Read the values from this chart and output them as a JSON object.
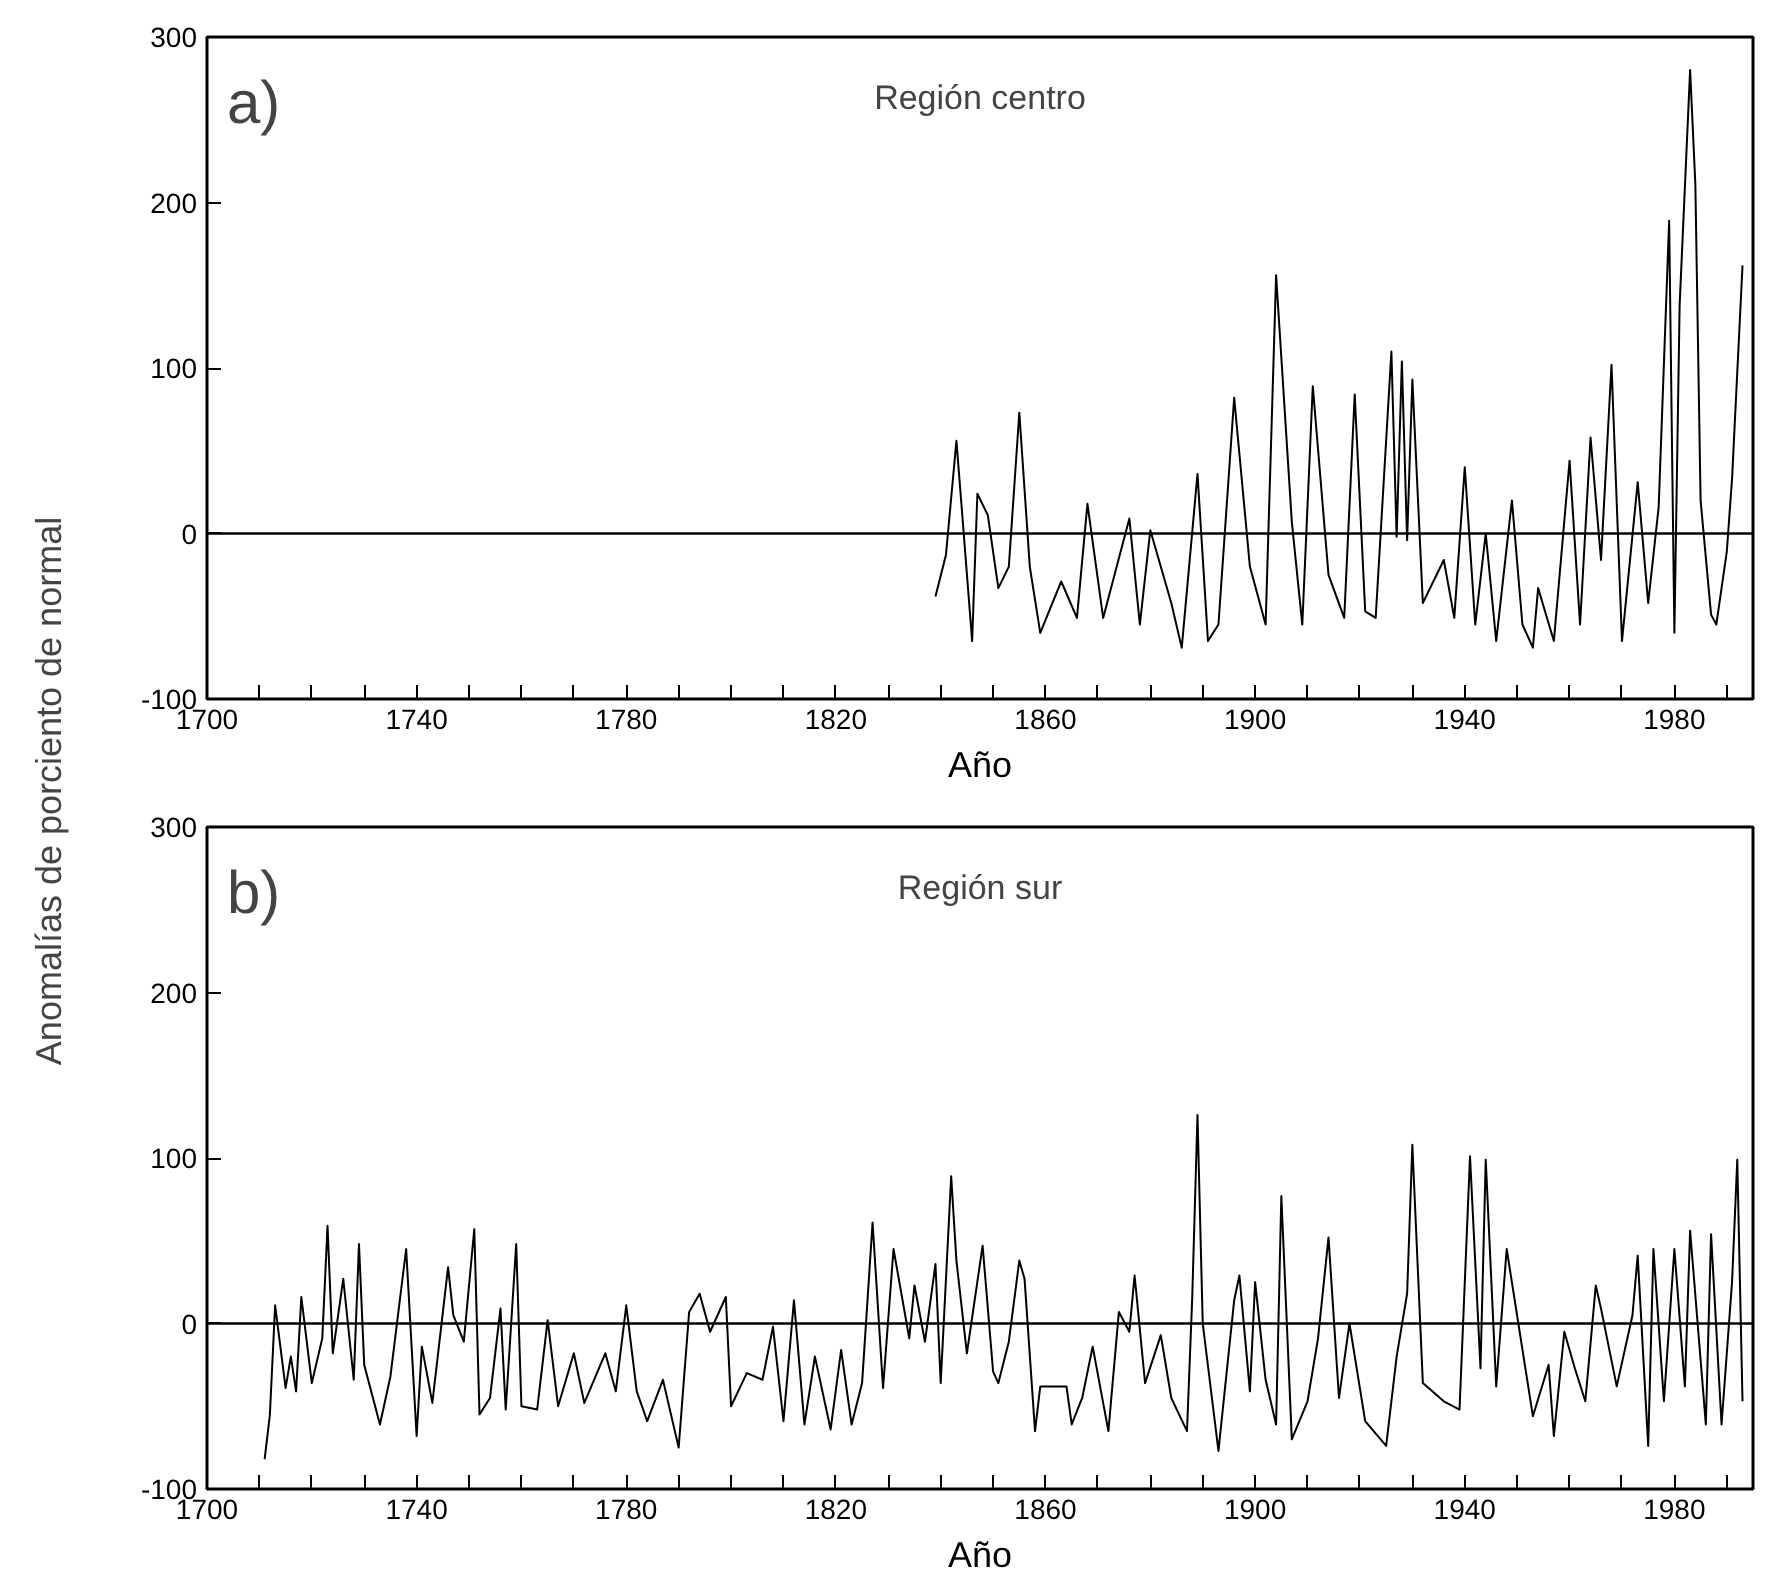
{
  "chart_data": [
    {
      "type": "line",
      "title": "Región centro",
      "xlabel": "Año",
      "ylabel": "Anomalías de porciento de normal",
      "annotations": [
        "a)"
      ],
      "series": [
        {
          "color": "#000000",
          "x": [
            1839,
            1841,
            1843,
            1844,
            1846,
            1847,
            1849,
            1851,
            1853,
            1855,
            1857,
            1859,
            1863,
            1866,
            1868,
            1871,
            1876,
            1878,
            1880,
            1884,
            1886,
            1889,
            1891,
            1893,
            1896,
            1899,
            1902,
            1904,
            1907,
            1909,
            1911,
            1914,
            1917,
            1919,
            1921,
            1923,
            1926,
            1927,
            1928,
            1929,
            1930,
            1932,
            1936,
            1938,
            1940,
            1942,
            1944,
            1946,
            1949,
            1951,
            1953,
            1954,
            1957,
            1960,
            1962,
            1964,
            1966,
            1968,
            1970,
            1973,
            1975,
            1977,
            1979,
            1980,
            1981,
            1983,
            1984,
            1985,
            1987,
            1988,
            1990,
            1991,
            1993
          ],
          "values": [
            -38,
            -13,
            56,
            16,
            -65,
            24,
            11,
            -33,
            -20,
            73,
            -20,
            -60,
            -29,
            -51,
            18,
            -51,
            9,
            -55,
            2,
            -42,
            -69,
            36,
            -65,
            -55,
            82,
            -20,
            -55,
            156,
            7,
            -55,
            89,
            -25,
            -51,
            84,
            -47,
            -51,
            110,
            -2,
            104,
            -4,
            93,
            -42,
            -16,
            -51,
            40,
            -55,
            0,
            -65,
            20,
            -55,
            -69,
            -33,
            -65,
            44,
            -55,
            58,
            -16,
            102,
            -65,
            31,
            -42,
            16,
            189,
            -60,
            138,
            280,
            211,
            20,
            -49,
            -55,
            -11,
            33,
            162
          ]
        }
      ],
      "xlim": [
        1700,
        1995
      ],
      "ylim": [
        -100,
        300
      ],
      "xticks": [
        1700,
        {
          "value": 1710,
          "label": null
        },
        {
          "value": 1720,
          "label": null
        },
        {
          "value": 1730,
          "label": null
        },
        1740,
        {
          "value": 1750,
          "label": null
        },
        {
          "value": 1760,
          "label": null
        },
        {
          "value": 1770,
          "label": null
        },
        1780,
        {
          "value": 1790,
          "label": null
        },
        {
          "value": 1800,
          "label": null
        },
        {
          "value": 1810,
          "label": null
        },
        1820,
        {
          "value": 1830,
          "label": null
        },
        {
          "value": 1840,
          "label": null
        },
        {
          "value": 1850,
          "label": null
        },
        1860,
        {
          "value": 1870,
          "label": null
        },
        {
          "value": 1880,
          "label": null
        },
        {
          "value": 1890,
          "label": null
        },
        1900,
        {
          "value": 1910,
          "label": null
        },
        {
          "value": 1920,
          "label": null
        },
        {
          "value": 1930,
          "label": null
        },
        1940,
        {
          "value": 1950,
          "label": null
        },
        {
          "value": 1960,
          "label": null
        },
        {
          "value": 1970,
          "label": null
        },
        1980,
        {
          "value": 1990,
          "label": null
        }
      ],
      "yticks": [
        -100,
        0,
        100,
        200,
        300
      ],
      "ref_lines": [
        {
          "axis": "y",
          "value": 0,
          "color": "#000000"
        }
      ],
      "grid": false
    },
    {
      "type": "line",
      "title": "Región sur",
      "xlabel": "Año",
      "annotations": [
        "b)"
      ],
      "series": [
        {
          "color": "#000000",
          "x": [
            1711,
            1712,
            1713,
            1715,
            1716,
            1717,
            1718,
            1720,
            1722,
            1723,
            1724,
            1726,
            1728,
            1729,
            1730,
            1733,
            1735,
            1738,
            1740,
            1741,
            1743,
            1746,
            1747,
            1749,
            1751,
            1752,
            1754,
            1756,
            1757,
            1759,
            1760,
            1763,
            1765,
            1767,
            1770,
            1772,
            1776,
            1778,
            1780,
            1782,
            1784,
            1787,
            1790,
            1792,
            1794,
            1796,
            1799,
            1800,
            1803,
            1806,
            1808,
            1810,
            1812,
            1814,
            1816,
            1819,
            1821,
            1823,
            1825,
            1827,
            1829,
            1831,
            1834,
            1835,
            1837,
            1839,
            1840,
            1842,
            1843,
            1845,
            1848,
            1850,
            1851,
            1853,
            1855,
            1856,
            1858,
            1859,
            1864,
            1865,
            1867,
            1869,
            1872,
            1874,
            1876,
            1877,
            1879,
            1882,
            1884,
            1887,
            1888,
            1889,
            1890,
            1893,
            1896,
            1897,
            1899,
            1900,
            1902,
            1904,
            1905,
            1907,
            1910,
            1912,
            1914,
            1916,
            1918,
            1921,
            1925,
            1927,
            1929,
            1930,
            1932,
            1936,
            1939,
            1941,
            1943,
            1944,
            1946,
            1948,
            1953,
            1956,
            1957,
            1959,
            1961,
            1963,
            1965,
            1966,
            1969,
            1972,
            1973,
            1975,
            1976,
            1978,
            1980,
            1982,
            1983,
            1986,
            1987,
            1989,
            1991,
            1992,
            1993
          ],
          "values": [
            -82,
            -55,
            11,
            -39,
            -20,
            -41,
            16,
            -36,
            -9,
            59,
            -18,
            27,
            -34,
            48,
            -25,
            -61,
            -32,
            45,
            -68,
            -14,
            -48,
            34,
            5,
            -11,
            57,
            -55,
            -45,
            9,
            -52,
            48,
            -50,
            -52,
            2,
            -50,
            -18,
            -48,
            -18,
            -41,
            11,
            -41,
            -59,
            -34,
            -75,
            7,
            18,
            -5,
            16,
            -50,
            -30,
            -34,
            -2,
            -59,
            14,
            -61,
            -20,
            -64,
            -16,
            -61,
            -36,
            61,
            -39,
            45,
            -9,
            23,
            -11,
            36,
            -36,
            89,
            38,
            -18,
            47,
            -29,
            -36,
            -11,
            38,
            27,
            -65,
            -38,
            -38,
            -61,
            -45,
            -14,
            -65,
            7,
            -5,
            29,
            -36,
            -7,
            -45,
            -65,
            16,
            126,
            0,
            -77,
            14,
            29,
            -41,
            25,
            -34,
            -61,
            77,
            -70,
            -47,
            -9,
            52,
            -45,
            0,
            -59,
            -74,
            -20,
            18,
            108,
            -36,
            -47,
            -52,
            101,
            -27,
            99,
            -38,
            45,
            -56,
            -25,
            -68,
            -5,
            -27,
            -47,
            23,
            9,
            -38,
            5,
            41,
            -74,
            45,
            -47,
            45,
            -38,
            56,
            -61,
            54,
            -61,
            25,
            99,
            -47
          ]
        }
      ],
      "xlim": [
        1700,
        1995
      ],
      "ylim": [
        -100,
        300
      ],
      "xticks": [
        1700,
        {
          "value": 1710,
          "label": null
        },
        {
          "value": 1720,
          "label": null
        },
        {
          "value": 1730,
          "label": null
        },
        1740,
        {
          "value": 1750,
          "label": null
        },
        {
          "value": 1760,
          "label": null
        },
        {
          "value": 1770,
          "label": null
        },
        1780,
        {
          "value": 1790,
          "label": null
        },
        {
          "value": 1800,
          "label": null
        },
        {
          "value": 1810,
          "label": null
        },
        1820,
        {
          "value": 1830,
          "label": null
        },
        {
          "value": 1840,
          "label": null
        },
        {
          "value": 1850,
          "label": null
        },
        1860,
        {
          "value": 1870,
          "label": null
        },
        {
          "value": 1880,
          "label": null
        },
        {
          "value": 1890,
          "label": null
        },
        1900,
        {
          "value": 1910,
          "label": null
        },
        {
          "value": 1920,
          "label": null
        },
        {
          "value": 1930,
          "label": null
        },
        1940,
        {
          "value": 1950,
          "label": null
        },
        {
          "value": 1960,
          "label": null
        },
        {
          "value": 1970,
          "label": null
        },
        1980,
        {
          "value": 1990,
          "label": null
        }
      ],
      "yticks": [
        -100,
        0,
        100,
        200,
        300
      ],
      "ref_lines": [
        {
          "axis": "y",
          "value": 0,
          "color": "#000000"
        }
      ],
      "grid": false
    }
  ]
}
